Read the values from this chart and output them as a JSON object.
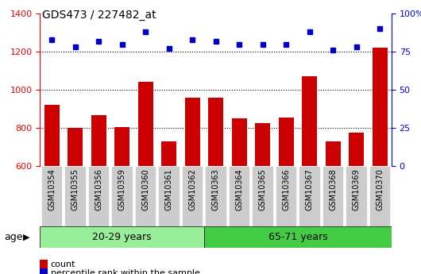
{
  "title": "GDS473 / 227482_at",
  "samples": [
    "GSM10354",
    "GSM10355",
    "GSM10356",
    "GSM10359",
    "GSM10360",
    "GSM10361",
    "GSM10362",
    "GSM10363",
    "GSM10364",
    "GSM10365",
    "GSM10366",
    "GSM10367",
    "GSM10368",
    "GSM10369",
    "GSM10370"
  ],
  "counts": [
    920,
    800,
    865,
    805,
    1040,
    728,
    958,
    960,
    848,
    825,
    855,
    1070,
    728,
    775,
    1220
  ],
  "percentile_ranks": [
    83,
    78,
    82,
    80,
    88,
    77,
    83,
    82,
    80,
    80,
    80,
    88,
    76,
    78,
    90
  ],
  "group1_count": 7,
  "group2_count": 8,
  "group1_label": "20-29 years",
  "group2_label": "65-71 years",
  "age_label": "age",
  "bar_color": "#cc0000",
  "dot_color": "#0000cc",
  "ylim_left": [
    600,
    1400
  ],
  "ylim_right": [
    0,
    100
  ],
  "yticks_left": [
    600,
    800,
    1000,
    1200,
    1400
  ],
  "yticks_right": [
    0,
    25,
    50,
    75,
    100
  ],
  "group1_bg": "#99ee99",
  "group2_bg": "#44cc44",
  "xlabel_bg": "#cccccc",
  "legend_red_label": "count",
  "legend_blue_label": "percentile rank within the sample",
  "bg_color": "#ffffff"
}
